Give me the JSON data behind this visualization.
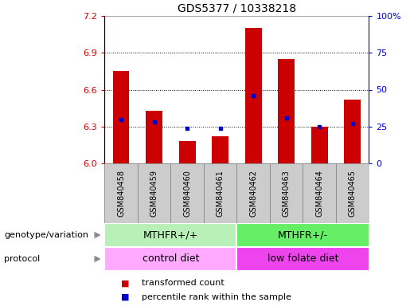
{
  "title": "GDS5377 / 10338218",
  "samples": [
    "GSM840458",
    "GSM840459",
    "GSM840460",
    "GSM840461",
    "GSM840462",
    "GSM840463",
    "GSM840464",
    "GSM840465"
  ],
  "bar_values": [
    6.75,
    6.43,
    6.18,
    6.22,
    7.1,
    6.85,
    6.3,
    6.52
  ],
  "bar_base": 6.0,
  "percentile_values": [
    30,
    28,
    24,
    24,
    46,
    31,
    25,
    27
  ],
  "bar_color": "#cc0000",
  "dot_color": "#0000cc",
  "ylim_left": [
    6.0,
    7.2
  ],
  "ylim_right": [
    0,
    100
  ],
  "yticks_left": [
    6.0,
    6.3,
    6.6,
    6.9,
    7.2
  ],
  "yticks_right": [
    0,
    25,
    50,
    75,
    100
  ],
  "grid_values": [
    6.3,
    6.6,
    6.9
  ],
  "genotype_groups": [
    {
      "label": "MTHFR+/+",
      "start": 0,
      "end": 4,
      "color": "#b8f0b8"
    },
    {
      "label": "MTHFR+/-",
      "start": 4,
      "end": 8,
      "color": "#66ee66"
    }
  ],
  "protocol_groups": [
    {
      "label": "control diet",
      "start": 0,
      "end": 4,
      "color": "#ffaaff"
    },
    {
      "label": "low folate diet",
      "start": 4,
      "end": 8,
      "color": "#ee44ee"
    }
  ],
  "legend_items": [
    {
      "color": "#cc0000",
      "label": "transformed count"
    },
    {
      "color": "#0000cc",
      "label": "percentile rank within the sample"
    }
  ],
  "left_axis_color": "#cc0000",
  "right_axis_color": "#0000cc",
  "bar_width": 0.5,
  "tick_label_bg": "#cccccc",
  "tick_label_border": "#888888",
  "sample_fontsize": 7,
  "annot_fontsize": 9,
  "legend_fontsize": 8,
  "title_fontsize": 10
}
